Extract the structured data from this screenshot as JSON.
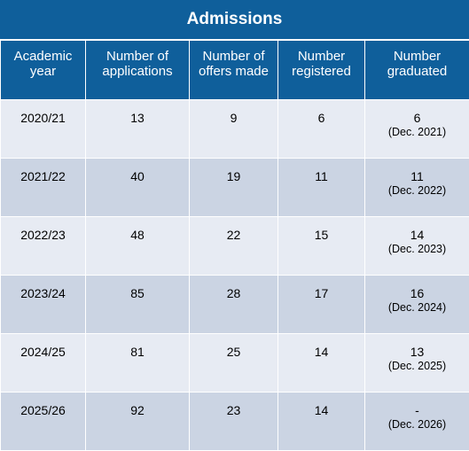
{
  "title": "Admissions",
  "headers": [
    "Academic year",
    "Number of applications",
    "Number of offers made",
    "Number registered",
    "Number graduated"
  ],
  "rows": [
    {
      "year": "2020/21",
      "applications": "13",
      "offers": "9",
      "registered": "6",
      "graduated": "6",
      "graduated_note": "(Dec. 2021)"
    },
    {
      "year": "2021/22",
      "applications": "40",
      "offers": "19",
      "registered": "11",
      "graduated": "11",
      "graduated_note": "(Dec. 2022)"
    },
    {
      "year": "2022/23",
      "applications": "48",
      "offers": "22",
      "registered": "15",
      "graduated": "14",
      "graduated_note": "(Dec. 2023)"
    },
    {
      "year": "2023/24",
      "applications": "85",
      "offers": "28",
      "registered": "17",
      "graduated": "16",
      "graduated_note": "(Dec. 2024)"
    },
    {
      "year": "2024/25",
      "applications": "81",
      "offers": "25",
      "registered": "14",
      "graduated": "13",
      "graduated_note": "(Dec. 2025)"
    },
    {
      "year": "2025/26",
      "applications": "92",
      "offers": "23",
      "registered": "14",
      "graduated": "-",
      "graduated_note": "(Dec. 2026)"
    }
  ],
  "colors": {
    "header_bg": "#0f5f9b",
    "row_light": "#e7ebf3",
    "row_dark": "#cbd4e3"
  }
}
